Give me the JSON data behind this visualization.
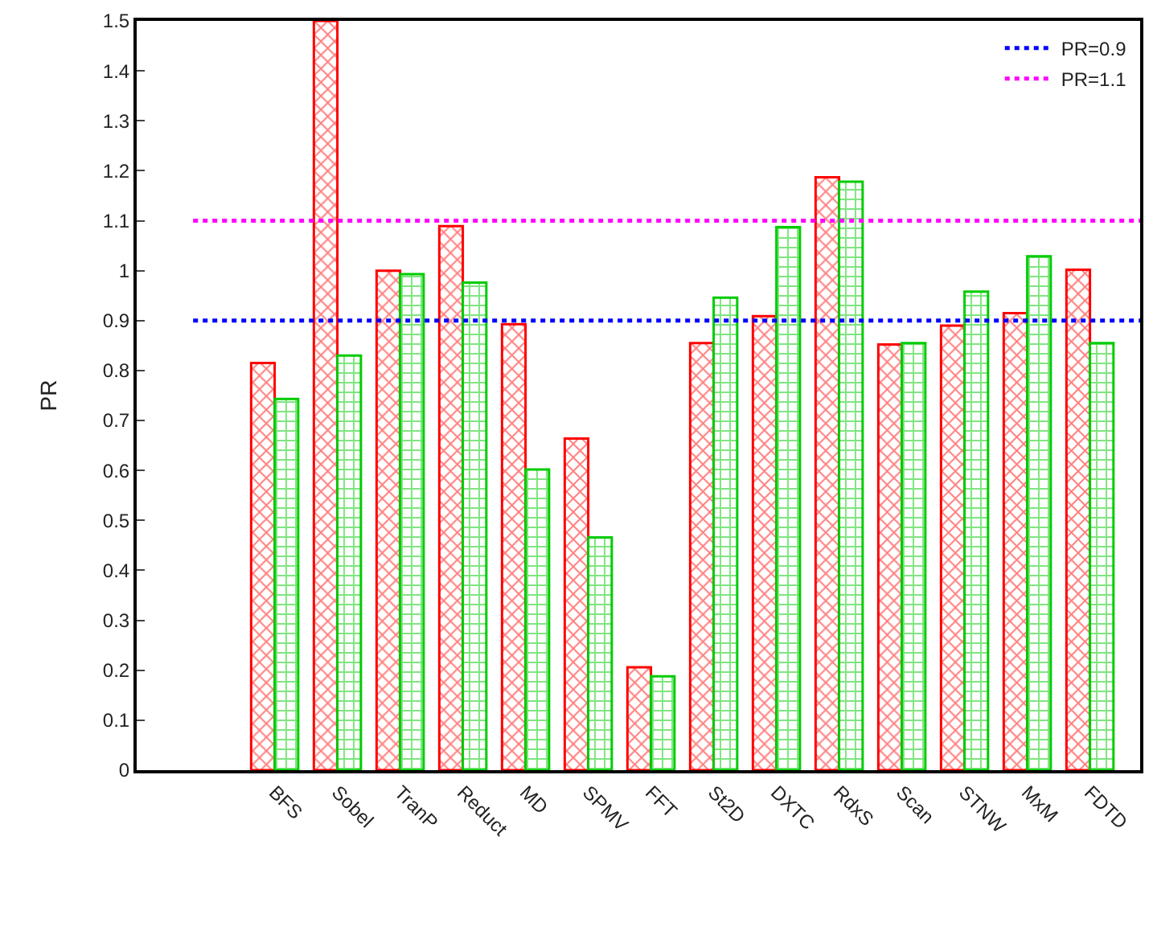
{
  "chart_data": {
    "type": "bar",
    "ylabel": "PR",
    "categories": [
      "BFS",
      "Sobel",
      "TranP",
      "Reduct",
      "MD",
      "SPMV",
      "FFT",
      "St2D",
      "DXTC",
      "RdxS",
      "Scan",
      "STNW",
      "MxM",
      "FDTD"
    ],
    "series": [
      {
        "color": "#ff0000",
        "values": [
          0.815,
          1.5,
          1.0,
          1.089,
          0.893,
          0.664,
          0.206,
          0.855,
          0.909,
          1.187,
          0.852,
          0.89,
          0.915,
          1.002
        ]
      },
      {
        "color": "#00cc00",
        "values": [
          0.743,
          0.83,
          0.993,
          0.976,
          0.602,
          0.466,
          0.188,
          0.946,
          1.087,
          1.178,
          0.855,
          0.958,
          1.029,
          0.855
        ]
      }
    ],
    "ylim": [
      0,
      1.5
    ],
    "yticks": [
      0,
      0.1,
      0.2,
      0.3,
      0.4,
      0.5,
      0.6,
      0.7,
      0.8,
      0.9,
      1,
      1.1,
      1.2,
      1.3,
      1.4,
      1.5
    ],
    "ref_lines": [
      {
        "axis": "y",
        "value": 0.9,
        "label": "PR=0.9",
        "color": "#0000ff",
        "line_style": "dotted"
      },
      {
        "axis": "y",
        "value": 1.1,
        "label": "PR=1.1",
        "color": "#ff00ff",
        "line_style": "dotted"
      }
    ],
    "legend": "top right"
  }
}
